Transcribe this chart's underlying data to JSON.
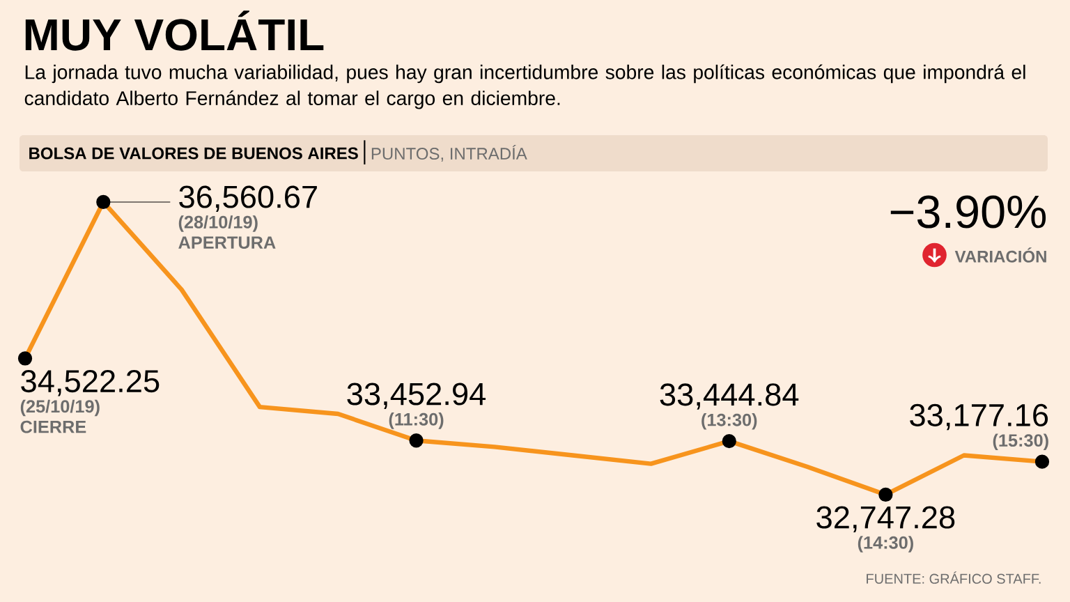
{
  "chart_data": {
    "type": "line",
    "title": "MUY VOLÁTIL",
    "subtitle": "La jornada tuvo mucha variabilidad, pues hay gran incertidumbre sobre las políticas económicas que impondrá el candidato Alberto Fernández al tomar el cargo en diciembre.",
    "ylabel": "PUNTOS, INTRADÍA",
    "categories": [
      null,
      null,
      null,
      null,
      null,
      null,
      null,
      null,
      null,
      null,
      null,
      null,
      null,
      null
    ],
    "series": [
      {
        "color": "#f7941d",
        "values": [
          34522.25,
          36560.67,
          35420,
          33890,
          33800,
          33452.94,
          33370,
          33260,
          33150,
          33444.84,
          33110,
          32747.28,
          33260,
          33177.16
        ],
        "value_labels": [
          "34,522.25",
          "36,560.67",
          null,
          null,
          null,
          "33,452.94",
          null,
          null,
          null,
          "33,444.84",
          null,
          "32,747.28",
          null,
          "33,177.16"
        ]
      }
    ],
    "line_style": "solid",
    "annotations": [
      "BOLSA DE VALORES DE BUENOS AIRES",
      "−3.90%",
      "VARIACIÓN",
      "FUENTE: GRÁFICO STAFF.",
      "(25/10/19)",
      "(28/10/19)",
      "(11:30)",
      "(13:30)",
      "(14:30)",
      "(15:30)",
      "CIERRE",
      "APERTURA"
    ]
  }
}
